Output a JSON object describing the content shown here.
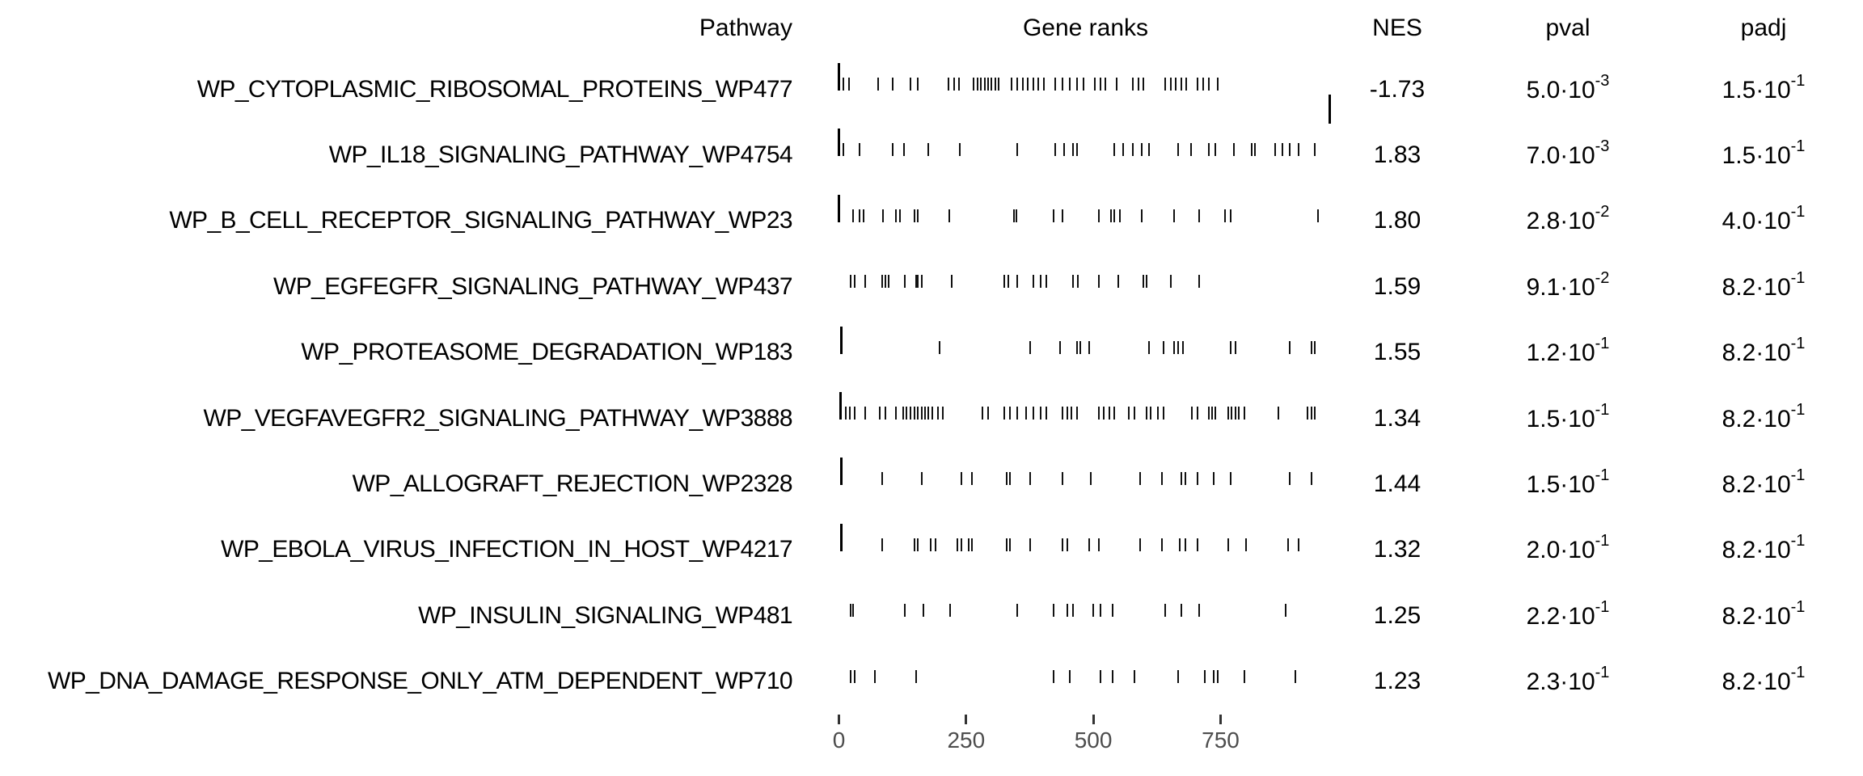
{
  "page": {
    "background": "#ffffff",
    "text_color": "#000000",
    "axis_text_color": "#4d4d4d",
    "tick_color": "#111111"
  },
  "chart_data": {
    "type": "table",
    "title": "GSEA results table (fgsea plotGseaTable style)",
    "columns": [
      "Pathway",
      "Gene ranks",
      "NES",
      "pval",
      "padj"
    ],
    "rank_axis": {
      "tick_values": [
        0,
        250,
        500,
        750
      ],
      "tick_labels": [
        "0",
        "250",
        "500",
        "750"
      ],
      "max_rank": 1045
    },
    "rows": [
      {
        "pathway": "WP_CYTOPLASMIC_RIBOSOMAL_PROTEINS_WP477",
        "nes": "-1.73",
        "pval": {
          "mantissa": "5.0·10",
          "exp": "-3"
        },
        "padj": {
          "mantissa": "1.5·10",
          "exp": "-1"
        },
        "lead_tick": true,
        "drop_tick": 965,
        "gene_ranks": [
          0,
          10,
          21,
          78,
          106,
          141,
          156,
          216,
          227,
          237,
          266,
          273,
          280,
          287,
          294,
          301,
          308,
          315,
          340,
          351,
          362,
          372,
          383,
          393,
          404,
          425,
          440,
          454,
          468,
          482,
          503,
          514,
          525,
          546,
          578,
          589,
          599,
          642,
          653,
          663,
          674,
          684,
          706,
          716,
          727,
          745
        ]
      },
      {
        "pathway": "WP_IL18_SIGNALING_PATHWAY_WP4754",
        "nes": "1.83",
        "pval": {
          "mantissa": "7.0·10",
          "exp": "-3"
        },
        "padj": {
          "mantissa": "1.5·10",
          "exp": "-1"
        },
        "lead_tick": true,
        "gene_ranks": [
          0,
          10,
          42,
          106,
          129,
          177,
          239,
          351,
          425,
          443,
          461,
          468,
          542,
          560,
          578,
          596,
          610,
          667,
          692,
          727,
          741,
          777,
          812,
          819,
          858,
          872,
          887,
          904,
          936
        ]
      },
      {
        "pathway": "WP_B_CELL_RECEPTOR_SIGNALING_PATHWAY_WP23",
        "nes": "1.80",
        "pval": {
          "mantissa": "2.8·10",
          "exp": "-2"
        },
        "padj": {
          "mantissa": "4.0·10",
          "exp": "-1"
        },
        "lead_tick": true,
        "gene_ranks": [
          0,
          28,
          42,
          49,
          88,
          113,
          120,
          149,
          156,
          218,
          344,
          349,
          422,
          440,
          511,
          536,
          542,
          553,
          596,
          660,
          709,
          759,
          770,
          943
        ]
      },
      {
        "pathway": "WP_EGFEGFR_SIGNALING_PATHWAY_WP437",
        "nes": "1.59",
        "pval": {
          "mantissa": "9.1·10",
          "exp": "-2"
        },
        "padj": {
          "mantissa": "8.2·10",
          "exp": "-1"
        },
        "lead_tick": false,
        "gene_ranks": [
          24,
          31,
          53,
          85,
          92,
          99,
          131,
          152,
          156,
          163,
          223,
          326,
          333,
          351,
          383,
          397,
          408,
          461,
          471,
          511,
          550,
          599,
          606,
          653,
          709
        ]
      },
      {
        "pathway": "WP_PROTEASOME_DEGRADATION_WP183",
        "nes": "1.55",
        "pval": {
          "mantissa": "1.2·10",
          "exp": "-1"
        },
        "padj": {
          "mantissa": "8.2·10",
          "exp": "-1"
        },
        "lead_tick": true,
        "gene_ranks": [
          5,
          198,
          376,
          436,
          468,
          475,
          493,
          610,
          638,
          660,
          667,
          677,
          770,
          780,
          887,
          929,
          936
        ]
      },
      {
        "pathway": "WP_VEGFAVEGFR2_SIGNALING_PATHWAY_WP3888",
        "nes": "1.34",
        "pval": {
          "mantissa": "1.5·10",
          "exp": "-1"
        },
        "padj": {
          "mantissa": "8.2·10",
          "exp": "-1"
        },
        "lead_tick": true,
        "gene_ranks": [
          3,
          14,
          22,
          31,
          53,
          81,
          92,
          113,
          127,
          134,
          141,
          149,
          156,
          163,
          170,
          177,
          184,
          195,
          205,
          283,
          294,
          326,
          337,
          351,
          369,
          383,
          397,
          408,
          440,
          450,
          457,
          468,
          511,
          521,
          532,
          542,
          571,
          581,
          606,
          613,
          628,
          638,
          695,
          706,
          727,
          734,
          741,
          766,
          773,
          780,
          787,
          798,
          865,
          922,
          929,
          936
        ]
      },
      {
        "pathway": "WP_ALLOGRAFT_REJECTION_WP2328",
        "nes": "1.44",
        "pval": {
          "mantissa": "1.5·10",
          "exp": "-1"
        },
        "padj": {
          "mantissa": "8.2·10",
          "exp": "-1"
        },
        "lead_tick": true,
        "gene_ranks": [
          5,
          85,
          163,
          241,
          262,
          330,
          337,
          376,
          440,
          496,
          592,
          635,
          674,
          681,
          706,
          738,
          770,
          887,
          929
        ]
      },
      {
        "pathway": "WP_EBOLA_VIRUS_INFECTION_IN_HOST_WP4217",
        "nes": "1.32",
        "pval": {
          "mantissa": "2.0·10",
          "exp": "-1"
        },
        "padj": {
          "mantissa": "8.2·10",
          "exp": "-1"
        },
        "lead_tick": true,
        "gene_ranks": [
          5,
          85,
          149,
          156,
          181,
          191,
          234,
          241,
          255,
          262,
          330,
          337,
          376,
          440,
          450,
          493,
          511,
          592,
          635,
          670,
          681,
          706,
          766,
          801,
          883,
          904
        ]
      },
      {
        "pathway": "WP_INSULIN_SIGNALING_WP481",
        "nes": "1.25",
        "pval": {
          "mantissa": "2.2·10",
          "exp": "-1"
        },
        "padj": {
          "mantissa": "8.2·10",
          "exp": "-1"
        },
        "lead_tick": false,
        "gene_ranks": [
          24,
          29,
          131,
          166,
          220,
          351,
          422,
          450,
          461,
          500,
          514,
          539,
          642,
          674,
          709,
          879
        ]
      },
      {
        "pathway": "WP_DNA_DAMAGE_RESPONSE_ONLY_ATM_DEPENDENT_WP710",
        "nes": "1.23",
        "pval": {
          "mantissa": "2.3·10",
          "exp": "-1"
        },
        "padj": {
          "mantissa": "8.2·10",
          "exp": "-1"
        },
        "lead_tick": false,
        "gene_ranks": [
          24,
          31,
          71,
          152,
          422,
          454,
          514,
          539,
          581,
          667,
          720,
          738,
          745,
          798,
          897
        ]
      }
    ]
  }
}
